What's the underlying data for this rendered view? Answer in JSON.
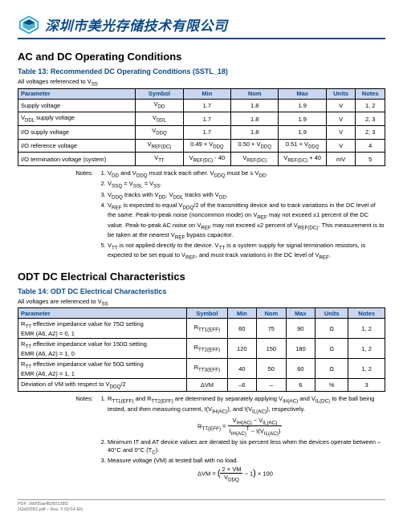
{
  "header": {
    "company_name": "深圳市美光存储技术有限公司",
    "logo_color_primary": "#2aa6c9",
    "logo_color_secondary": "#0b4a8a",
    "rule_color": "#0b4a8a"
  },
  "section1": {
    "heading": "AC and DC Operating Conditions",
    "table_title": "Table 13: Recommended DC Operating Conditions (SSTL_18)",
    "subnote": "All voltages referenced to V",
    "subnote_sub": "SS",
    "columns": [
      "Parameter",
      "Symbol",
      "Min",
      "Nom",
      "Max",
      "Units",
      "Notes"
    ],
    "rows": [
      {
        "p": "Supply voltage",
        "sym": "V",
        "symsub": "DD",
        "min": "1.7",
        "nom": "1.8",
        "max": "1.9",
        "units": "V",
        "notes": "1, 2"
      },
      {
        "p": "V",
        "psub": "DDL",
        "ptail": " supply voltage",
        "sym": "V",
        "symsub": "DDL",
        "min": "1.7",
        "nom": "1.8",
        "max": "1.9",
        "units": "V",
        "notes": "2, 3"
      },
      {
        "p": "I/O supply voltage",
        "sym": "V",
        "symsub": "DDQ",
        "min": "1.7",
        "nom": "1.8",
        "max": "1.9",
        "units": "V",
        "notes": "2, 3"
      },
      {
        "p": "I/O reference voltage",
        "sym": "V",
        "symsub": "REF(DC)",
        "min": "0.49 × V",
        "minsub": "DDQ",
        "nom": "0.50 × V",
        "nomsub": "DDQ",
        "max": "0.51 × V",
        "maxsub": "DDQ",
        "units": "V",
        "notes": "4"
      },
      {
        "p": "I/O termination voltage (system)",
        "sym": "V",
        "symsub": "TT",
        "min": "V",
        "minsub": "REF(DC)",
        "mintail": " - 40",
        "nom": "V",
        "nomsub": "REF(DC)",
        "max": "V",
        "maxsub": "REF(DC)",
        "maxtail": " + 40",
        "units": "mV",
        "notes": "5"
      }
    ],
    "col_widths": [
      "32%",
      "13%",
      "13%",
      "13%",
      "13%",
      "8%",
      "8%"
    ],
    "header_bg": "#c9d6ee",
    "header_fg": "#0b4a8a"
  },
  "notes1": {
    "label": "Notes:",
    "items": [
      "V<sub>DD</sub> and V<sub>DDQ</sub> must track each other. V<sub>DDQ</sub> must be ≤ V<sub>DD</sub>.",
      "V<sub>SSQ</sub> = V<sub>SSL</sub> = V<sub>SS</sub>.",
      "V<sub>DDQ</sub> tracks with V<sub>DD</sub>. V<sub>DDL</sub> tracks with V<sub>DD</sub>.",
      "V<sub>REF</sub> is expected to equal V<sub>DDQ</sub>/2 of the transmitting device and to track variations in the DC level of the same. Peak-to-peak noise (noncommon mode) on V<sub>REF</sub> may not exceed ±1 percent of the DC value. Peak-to-peak AC noise on V<sub>REF</sub> may not exceed ±2 percent of V<sub>REF(DC)</sub>. This measurement is to be taken at the nearest V<sub>REF</sub> bypass capacitor.",
      "V<sub>TT</sub> is not applied directly to the device. V<sub>TT</sub> is a system supply for signal termination resistors, is expected to be set equal to V<sub>REF</sub>, and must track variations in the DC level of V<sub>REF</sub>."
    ]
  },
  "section2": {
    "heading": "ODT DC Electrical Characteristics",
    "table_title": "Table 14: ODT DC Electrical Characteristics",
    "subnote": "All voltages are referenced to V",
    "subnote_sub": "SS",
    "columns": [
      "Parameter",
      "Symbol",
      "Min",
      "Nom",
      "Max",
      "Units",
      "Notes"
    ],
    "col_widths": [
      "46%",
      "11%",
      "8%",
      "8%",
      "8%",
      "9%",
      "10%"
    ],
    "rows": [
      {
        "p": "R<sub>TT</sub> effective impedance value for 75Ω setting<br>EMR (A6, A2) = 0, 1",
        "sym": "R<sub>TT1(EFF)</sub>",
        "min": "60",
        "nom": "75",
        "max": "90",
        "units": "Ω",
        "notes": "1, 2"
      },
      {
        "p": "R<sub>TT</sub> effective impedance value for 150Ω setting<br>EMR (A6, A2) = 1, 0",
        "sym": "R<sub>TT2(EFF)</sub>",
        "min": "120",
        "nom": "150",
        "max": "180",
        "units": "Ω",
        "notes": "1, 2"
      },
      {
        "p": "R<sub>TT</sub> effective impedance value for 50Ω setting<br>EMR (A6, A2) = 1, 1",
        "sym": "R<sub>TT3(EFF)</sub>",
        "min": "40",
        "nom": "50",
        "max": "60",
        "units": "Ω",
        "notes": "1, 2"
      },
      {
        "p": "Deviation of VM with respect to V<sub>DDQ</sub>/2",
        "sym": "ΔVM",
        "min": "–6",
        "nom": "–",
        "max": "6",
        "units": "%",
        "notes": "3"
      }
    ]
  },
  "notes2": {
    "label": "Notes:",
    "items": [
      "R<sub>TT1(EFF)</sub> and R<sub>TT2(EFF)</sub> are determined by separately applying V<sub>IH(AC)</sub> and V<sub>IL(DC)</sub> to the ball being tested, and then measuring current, I(V<sub>IH(AC)</sub>), and I(V<sub>IL(AC)</sub>), respectively.",
      "Minimum IT and AT device values are derated by six percent less when the devices operate between –40°C and 0°C (T<sub>C</sub>).",
      "Measure voltage (VM) at tested ball with no load."
    ],
    "formula1_html": "R<sub>TT(EFF)</sub> = <span style='display:inline-block;vertical-align:middle;text-align:center;'><span style='display:block;border-bottom:0.5px solid #000;padding:0 2px;'>V<sub>IH(AC)</sub> − V<sub>IL(AC)</sub></span><span style='display:block;padding:0 2px;'>I<sub>IH(AC)</sub><sup>T</sup> − I(V<sub>IL(AC)</sub>)</span></span>",
    "formula2_html": "ΔVM = <span style='font-size:11px;'>(</span><span style='display:inline-block;vertical-align:middle;text-align:center;'><span style='display:block;border-bottom:0.5px solid #000;padding:0 2px;'>2 × VM</span><span style='display:block;padding:0 2px;'>V<sub>DDQ</sub></span></span> − 1<span style='font-size:11px;'>)</span> × 100"
  },
  "footer": {
    "line1": "PDF: 09005aef8260138f2",
    "line2": "1GbDDR2.pdf – Rev. Y 02/14 EN"
  }
}
